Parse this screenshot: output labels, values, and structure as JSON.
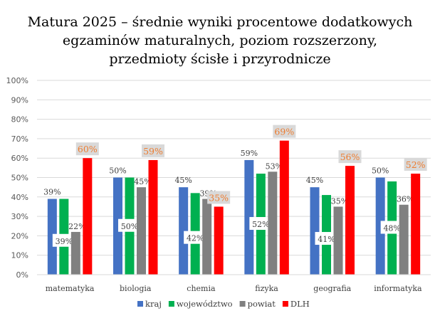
{
  "chart_data": {
    "type": "bar",
    "title_lines": [
      "Matura 2025 – średnie wyniki procentowe dodatkowych",
      "egzaminów maturalnych, poziom rozszerzony,",
      "przedmioty ścisłe i przyrodnicze"
    ],
    "categories": [
      "matematyka",
      "biologia",
      "chemia",
      "fizyka",
      "geografia",
      "informatyka"
    ],
    "series": [
      {
        "name": "kraj",
        "color": "#4472C4",
        "values": [
          39,
          50,
          45,
          59,
          45,
          50
        ]
      },
      {
        "name": "województwo",
        "color": "#00B050",
        "values": [
          39,
          50,
          42,
          52,
          41,
          48
        ]
      },
      {
        "name": "powiat",
        "color": "#808080",
        "values": [
          22,
          45,
          39,
          53,
          35,
          36
        ]
      },
      {
        "name": "DLH",
        "color": "#FF0000",
        "values": [
          60,
          59,
          35,
          69,
          56,
          52
        ]
      }
    ],
    "ylim": [
      0,
      100
    ],
    "yticks": [
      "0%",
      "10%",
      "20%",
      "30%",
      "40%",
      "50%",
      "60%",
      "70%",
      "80%",
      "90%",
      "100%"
    ],
    "value_format": "percent",
    "dlh_label_color": "#ED7D31",
    "grid": true,
    "legend": "bottom"
  }
}
